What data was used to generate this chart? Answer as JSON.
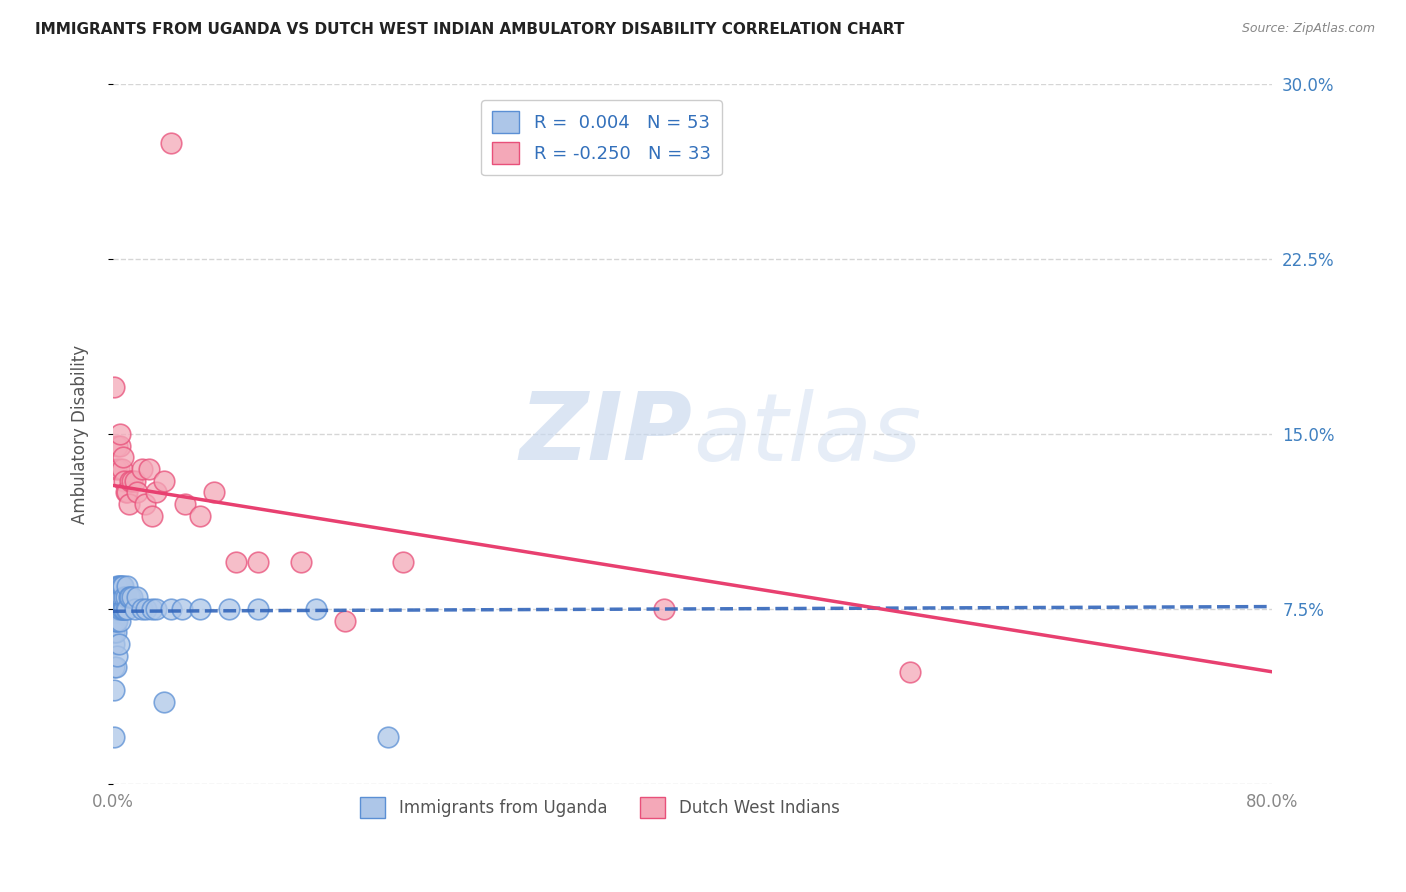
{
  "title": "IMMIGRANTS FROM UGANDA VS DUTCH WEST INDIAN AMBULATORY DISABILITY CORRELATION CHART",
  "source": "Source: ZipAtlas.com",
  "xlabel": "",
  "ylabel": "Ambulatory Disability",
  "xlim": [
    0.0,
    0.8
  ],
  "ylim": [
    0.0,
    0.3
  ],
  "xticks": [
    0.0,
    0.2,
    0.4,
    0.6,
    0.8
  ],
  "xtick_labels": [
    "0.0%",
    "",
    "",
    "",
    "80.0%"
  ],
  "yticks": [
    0.0,
    0.075,
    0.15,
    0.225,
    0.3
  ],
  "ytick_labels": [
    "",
    "7.5%",
    "15.0%",
    "22.5%",
    "30.0%"
  ],
  "blue_color": "#adc6e8",
  "pink_color": "#f4a8b8",
  "blue_edge_color": "#5b8fd4",
  "pink_edge_color": "#e8507a",
  "blue_line_color": "#3366bb",
  "pink_line_color": "#e84070",
  "R_blue": 0.004,
  "N_blue": 53,
  "R_pink": -0.25,
  "N_pink": 33,
  "blue_x": [
    0.001,
    0.001,
    0.001,
    0.001,
    0.001,
    0.001,
    0.001,
    0.002,
    0.002,
    0.002,
    0.002,
    0.002,
    0.003,
    0.003,
    0.003,
    0.003,
    0.003,
    0.004,
    0.004,
    0.004,
    0.004,
    0.005,
    0.005,
    0.005,
    0.005,
    0.006,
    0.006,
    0.006,
    0.007,
    0.007,
    0.008,
    0.008,
    0.009,
    0.009,
    0.01,
    0.01,
    0.011,
    0.012,
    0.013,
    0.015,
    0.017,
    0.02,
    0.023,
    0.027,
    0.03,
    0.035,
    0.04,
    0.048,
    0.06,
    0.08,
    0.1,
    0.14,
    0.19
  ],
  "blue_y": [
    0.02,
    0.04,
    0.05,
    0.06,
    0.065,
    0.07,
    0.08,
    0.05,
    0.065,
    0.07,
    0.075,
    0.08,
    0.055,
    0.07,
    0.075,
    0.08,
    0.085,
    0.06,
    0.075,
    0.08,
    0.085,
    0.07,
    0.075,
    0.08,
    0.085,
    0.075,
    0.08,
    0.085,
    0.075,
    0.085,
    0.075,
    0.08,
    0.075,
    0.08,
    0.075,
    0.085,
    0.08,
    0.08,
    0.08,
    0.075,
    0.08,
    0.075,
    0.075,
    0.075,
    0.075,
    0.035,
    0.075,
    0.075,
    0.075,
    0.075,
    0.075,
    0.075,
    0.02
  ],
  "pink_x": [
    0.001,
    0.002,
    0.003,
    0.004,
    0.005,
    0.005,
    0.006,
    0.007,
    0.008,
    0.009,
    0.01,
    0.011,
    0.012,
    0.013,
    0.015,
    0.017,
    0.02,
    0.022,
    0.025,
    0.027,
    0.03,
    0.035,
    0.04,
    0.05,
    0.06,
    0.07,
    0.085,
    0.1,
    0.13,
    0.16,
    0.2,
    0.38,
    0.55
  ],
  "pink_y": [
    0.17,
    0.135,
    0.145,
    0.135,
    0.145,
    0.15,
    0.135,
    0.14,
    0.13,
    0.125,
    0.125,
    0.12,
    0.13,
    0.13,
    0.13,
    0.125,
    0.135,
    0.12,
    0.135,
    0.115,
    0.125,
    0.13,
    0.275,
    0.12,
    0.115,
    0.125,
    0.095,
    0.095,
    0.095,
    0.07,
    0.095,
    0.075,
    0.048
  ],
  "pink_trend_x0": 0.0,
  "pink_trend_y0": 0.128,
  "pink_trend_x1": 0.8,
  "pink_trend_y1": 0.048,
  "blue_trend_x0": 0.0,
  "blue_trend_y0": 0.074,
  "blue_trend_x1": 0.8,
  "blue_trend_y1": 0.076,
  "watermark_zip": "ZIP",
  "watermark_atlas": "atlas",
  "background_color": "#ffffff",
  "grid_color": "#cccccc"
}
